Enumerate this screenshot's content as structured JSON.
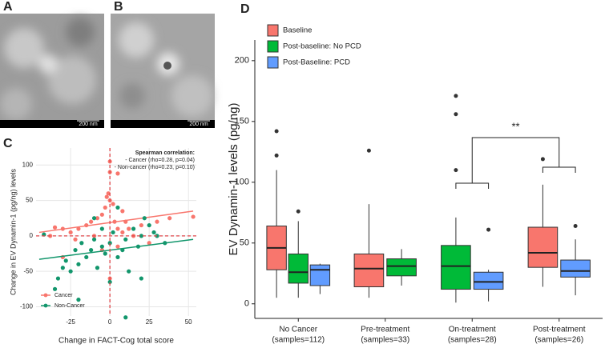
{
  "panels": [
    "A",
    "B",
    "C",
    "D"
  ],
  "micrographs": [
    {
      "scale": "200 nm"
    },
    {
      "scale": "200 nm"
    }
  ],
  "chart_data": [
    {
      "type": "scatter",
      "xlabel": "Change in FACT-Cog total score",
      "ylabel": "Change in EV Dynamin-1 (pg/ng) levels",
      "annotation": [
        "Spearman correlation:",
        "- Cancer (rho=0.28, p=0.04)",
        "- Non-cancer (rho=0.23, p=0.10)"
      ],
      "xlim": [
        -47,
        55
      ],
      "ylim": [
        -113,
        124
      ],
      "xticks": [
        -25,
        0,
        25,
        50
      ],
      "yticks": [
        -100,
        -50,
        0,
        50,
        100
      ],
      "reference_lines": {
        "x": 0,
        "y": 0
      },
      "grid": true,
      "legend": "bottom-left",
      "series": [
        {
          "name": "Cancer",
          "color": "#f8766d",
          "x": [
            -30,
            -35,
            -38,
            -25,
            -22,
            -20,
            -15,
            -12,
            -10,
            -8,
            -5,
            -3,
            -2,
            -1,
            0,
            0,
            0,
            2,
            3,
            5,
            5,
            8,
            8,
            10,
            12,
            15,
            20,
            25,
            30,
            38,
            53,
            -30,
            -5,
            5,
            0
          ],
          "values": [
            10,
            12,
            0,
            5,
            -5,
            10,
            15,
            20,
            0,
            25,
            30,
            40,
            55,
            60,
            105,
            90,
            50,
            45,
            20,
            10,
            -15,
            35,
            5,
            20,
            10,
            0,
            15,
            -10,
            20,
            25,
            27,
            -30,
            -20,
            88,
            -60
          ],
          "fit": {
            "x": [
              -45,
              53
            ],
            "values": [
              5,
              35
            ]
          }
        },
        {
          "name": "Non-Cancer",
          "color": "#12966c",
          "x": [
            -42,
            -35,
            -33,
            -30,
            -28,
            -25,
            -22,
            -20,
            -18,
            -15,
            -12,
            -10,
            -8,
            -5,
            -3,
            0,
            0,
            2,
            5,
            5,
            8,
            10,
            12,
            15,
            18,
            20,
            20,
            22,
            25,
            28,
            30,
            35,
            -5,
            -10,
            10,
            -20
          ],
          "values": [
            2,
            -75,
            -60,
            -45,
            -35,
            -50,
            -20,
            -40,
            -10,
            -30,
            -20,
            -5,
            -45,
            -15,
            -25,
            -65,
            -10,
            5,
            -30,
            40,
            -20,
            -5,
            -50,
            10,
            -15,
            -60,
            0,
            25,
            15,
            5,
            0,
            -10,
            10,
            25,
            -115,
            -90
          ],
          "fit": {
            "x": [
              -45,
              53
            ],
            "values": [
              -33,
              -5
            ]
          }
        }
      ]
    },
    {
      "type": "box",
      "ylabel": "EV Dynamin-1 levels (pg/ng)",
      "ylim": [
        -12,
        217
      ],
      "yticks": [
        0,
        50,
        100,
        150,
        200
      ],
      "categories": [
        "No Cancer",
        "Pre-treatment",
        "On-treatment",
        "Post-treatment"
      ],
      "sample_labels": [
        "(samples=112)",
        "(samples=33)",
        "(samples=28)",
        "(samples=26)"
      ],
      "annotation": "**",
      "legend": "top-left",
      "series": [
        {
          "name": "Baseline",
          "color": "#f8766d",
          "values": [
            {
              "min": 5,
              "q1": 28,
              "median": 46,
              "q3": 64,
              "max": 110,
              "outliers": [
                122,
                142
              ]
            },
            {
              "min": 5,
              "q1": 14,
              "median": 29,
              "q3": 41,
              "max": 82,
              "outliers": [
                126
              ]
            },
            null,
            {
              "min": 14,
              "q1": 30,
              "median": 42,
              "q3": 63,
              "max": 98,
              "outliers": [
                119
              ]
            }
          ]
        },
        {
          "name": "Post-baseline: No PCD",
          "color": "#00ba38",
          "values": [
            {
              "min": 5,
              "q1": 17,
              "median": 26,
              "q3": 41,
              "max": 68,
              "outliers": [
                76
              ]
            },
            {
              "min": 15,
              "q1": 23,
              "median": 31,
              "q3": 37,
              "max": 45,
              "outliers": []
            },
            {
              "min": 1,
              "q1": 12,
              "median": 31,
              "q3": 48,
              "max": 71,
              "outliers": [
                110,
                156,
                171
              ]
            },
            null
          ]
        },
        {
          "name": "Post-Baseline: PCD",
          "color": "#619cff",
          "values": [
            {
              "min": 8,
              "q1": 15,
              "median": 28,
              "q3": 32,
              "max": 33,
              "outliers": []
            },
            null,
            {
              "min": 2,
              "q1": 12,
              "median": 18,
              "q3": 26,
              "max": 28,
              "outliers": [
                61
              ]
            },
            {
              "min": 7,
              "q1": 22,
              "median": 27,
              "q3": 36,
              "max": 53,
              "outliers": [
                64
              ]
            }
          ]
        }
      ]
    }
  ]
}
